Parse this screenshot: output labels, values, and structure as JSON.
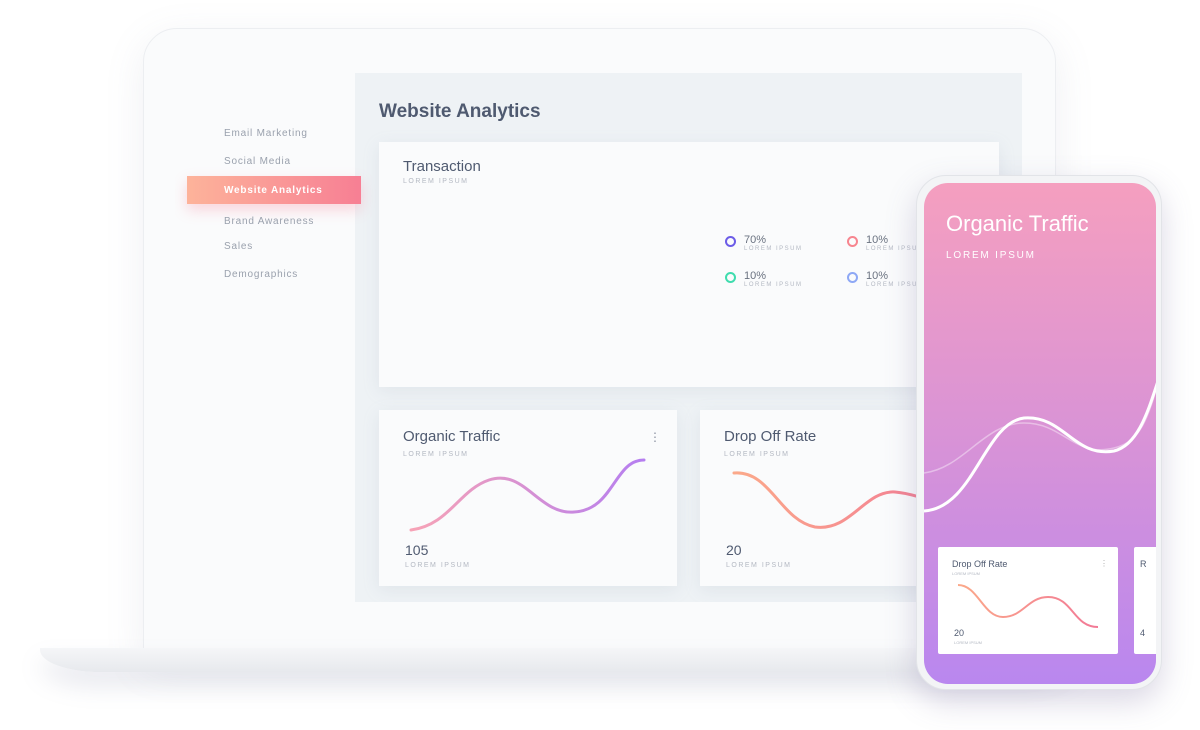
{
  "sidebar": {
    "items": [
      {
        "label": "Email Marketing"
      },
      {
        "label": "Social Media"
      },
      {
        "label": "Website Analytics",
        "active": true
      },
      {
        "label": "Brand Awareness"
      },
      {
        "label": "Sales"
      },
      {
        "label": "Demographics"
      }
    ]
  },
  "main": {
    "title": "Website Analytics",
    "transaction": {
      "title": "Transaction",
      "subtitle": "LOREM IPSUM",
      "legend": [
        {
          "value": "70%",
          "label": "LOREM IPSUM",
          "color": "#6c5ce7"
        },
        {
          "value": "10%",
          "label": "LOREM IPSUM",
          "color": "#f7858f"
        },
        {
          "value": "10%",
          "label": "LOREM IPSUM",
          "color": "#3fdcae"
        },
        {
          "value": "10%",
          "label": "LOREM IPSUM",
          "color": "#8ea8f5"
        }
      ]
    },
    "organic": {
      "title": "Organic Traffic",
      "subtitle": "LOREM IPSUM",
      "value": "105",
      "value_label": "LOREM IPSUM"
    },
    "dropoff": {
      "title": "Drop Off Rate",
      "subtitle": "LOREM IPSUM",
      "value": "20",
      "value_label": "LOREM IPSUM"
    }
  },
  "phone": {
    "title": "Organic Traffic",
    "subtitle": "LOREM IPSUM",
    "card1": {
      "title": "Drop Off Rate",
      "subtitle": "LOREM IPSUM",
      "value": "20",
      "value_label": "LOREM IPSUM"
    },
    "card2": {
      "title": "R",
      "value": "4"
    }
  },
  "colors": {
    "accent_gradient": [
      "#fdb39a",
      "#f77f94"
    ],
    "donut": [
      "#6c5ce7",
      "#f7858f",
      "#3fdcae",
      "#9fb8f7"
    ]
  }
}
